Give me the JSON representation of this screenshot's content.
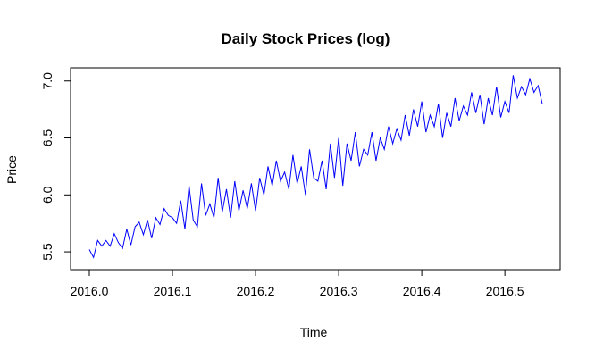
{
  "chart_data": {
    "type": "line",
    "title": "Daily Stock Prices (log)",
    "xlabel": "Time",
    "ylabel": "Price",
    "xlim": [
      2016.0,
      2016.545
    ],
    "ylim": [
      5.43,
      7.1
    ],
    "x_ticks": [
      2016.0,
      2016.1,
      2016.2,
      2016.3,
      2016.4,
      2016.5
    ],
    "x_tick_labels": [
      "2016.0",
      "2016.1",
      "2016.2",
      "2016.3",
      "2016.4",
      "2016.5"
    ],
    "y_ticks": [
      5.5,
      6.0,
      6.5,
      7.0
    ],
    "y_tick_labels": [
      "5.5",
      "6.0",
      "6.5",
      "7.0"
    ],
    "grid": false,
    "color": "#0000ff",
    "series": [
      {
        "x": [
          2016.0,
          2016.005,
          2016.01,
          2016.015,
          2016.02,
          2016.025,
          2016.03,
          2016.035,
          2016.04,
          2016.045,
          2016.05,
          2016.055,
          2016.06,
          2016.065,
          2016.07,
          2016.075,
          2016.08,
          2016.085,
          2016.09,
          2016.095,
          2016.1,
          2016.105,
          2016.11,
          2016.115,
          2016.12,
          2016.125,
          2016.13,
          2016.135,
          2016.14,
          2016.145,
          2016.15,
          2016.155,
          2016.16,
          2016.165,
          2016.17,
          2016.175,
          2016.18,
          2016.185,
          2016.19,
          2016.195,
          2016.2,
          2016.205,
          2016.21,
          2016.215,
          2016.22,
          2016.225,
          2016.23,
          2016.235,
          2016.24,
          2016.245,
          2016.25,
          2016.255,
          2016.26,
          2016.265,
          2016.27,
          2016.275,
          2016.28,
          2016.285,
          2016.29,
          2016.295,
          2016.3,
          2016.305,
          2016.31,
          2016.315,
          2016.32,
          2016.325,
          2016.33,
          2016.335,
          2016.34,
          2016.345,
          2016.35,
          2016.355,
          2016.36,
          2016.365,
          2016.37,
          2016.375,
          2016.38,
          2016.385,
          2016.39,
          2016.395,
          2016.4,
          2016.405,
          2016.41,
          2016.415,
          2016.42,
          2016.425,
          2016.43,
          2016.435,
          2016.44,
          2016.445,
          2016.45,
          2016.455,
          2016.46,
          2016.465,
          2016.47,
          2016.475,
          2016.48,
          2016.485,
          2016.49,
          2016.495,
          2016.5,
          2016.505,
          2016.51,
          2016.515,
          2016.52,
          2016.525,
          2016.53,
          2016.535,
          2016.54,
          2016.545
        ],
        "values": [
          5.52,
          5.45,
          5.6,
          5.55,
          5.6,
          5.55,
          5.66,
          5.58,
          5.53,
          5.7,
          5.56,
          5.72,
          5.76,
          5.65,
          5.78,
          5.62,
          5.8,
          5.74,
          5.88,
          5.82,
          5.8,
          5.75,
          5.95,
          5.7,
          6.08,
          5.78,
          5.72,
          6.1,
          5.82,
          5.92,
          5.8,
          6.15,
          5.85,
          6.05,
          5.8,
          6.12,
          5.86,
          6.04,
          5.88,
          6.1,
          5.86,
          6.15,
          6.0,
          6.25,
          6.08,
          6.3,
          6.12,
          6.2,
          6.05,
          6.35,
          6.1,
          6.25,
          6.0,
          6.4,
          6.15,
          6.12,
          6.3,
          6.05,
          6.45,
          6.15,
          6.5,
          6.08,
          6.45,
          6.3,
          6.55,
          6.25,
          6.4,
          6.35,
          6.55,
          6.3,
          6.5,
          6.4,
          6.6,
          6.45,
          6.58,
          6.48,
          6.7,
          6.52,
          6.75,
          6.6,
          6.82,
          6.55,
          6.7,
          6.6,
          6.8,
          6.5,
          6.72,
          6.6,
          6.85,
          6.65,
          6.78,
          6.7,
          6.9,
          6.72,
          6.88,
          6.62,
          6.85,
          6.7,
          6.95,
          6.68,
          6.82,
          6.72,
          7.05,
          6.85,
          6.95,
          6.88,
          7.02,
          6.9,
          6.96,
          6.8
        ]
      }
    ]
  }
}
